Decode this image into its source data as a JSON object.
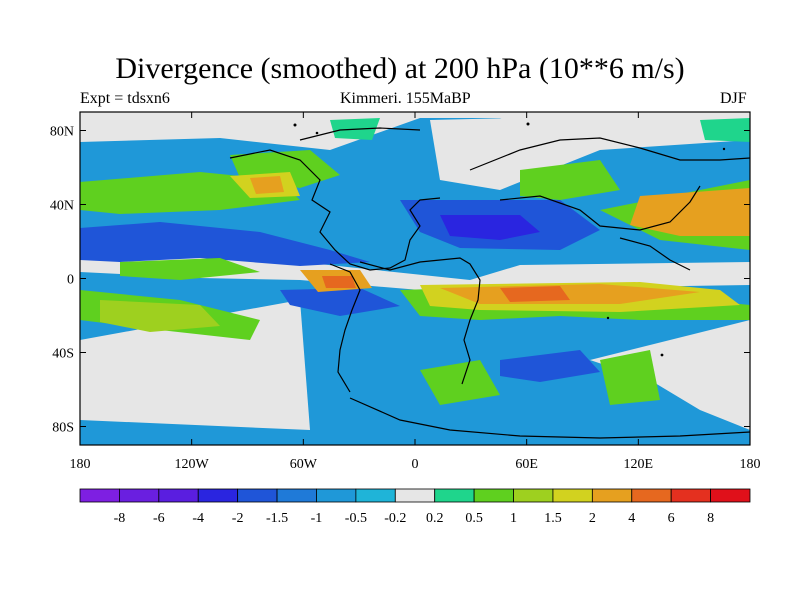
{
  "title": "Divergence (smoothed) at 200 hPa (10**6 m/s)",
  "experiment": "Expt = tdsxn6",
  "subtitle": "Kimmeri. 155MaBP",
  "season": "DJF",
  "lat_ticks": [
    {
      "value": 80,
      "label": "80N"
    },
    {
      "value": 40,
      "label": "40N"
    },
    {
      "value": 0,
      "label": "0"
    },
    {
      "value": -40,
      "label": "40S"
    },
    {
      "value": -80,
      "label": "80S"
    }
  ],
  "lon_ticks": [
    {
      "value": -180,
      "label": "180"
    },
    {
      "value": -120,
      "label": "120W"
    },
    {
      "value": -60,
      "label": "60W"
    },
    {
      "value": 0,
      "label": "0"
    },
    {
      "value": 60,
      "label": "60E"
    },
    {
      "value": 120,
      "label": "120E"
    },
    {
      "value": 180,
      "label": "180"
    }
  ],
  "colorbar": {
    "colors": [
      "#7e1fe2",
      "#6a1fe0",
      "#5a1ee0",
      "#2a25e0",
      "#1f55d8",
      "#1f7ad8",
      "#1f98d8",
      "#1fb4d8",
      "#e6e6e6",
      "#1fd58c",
      "#5fd01f",
      "#9ed01f",
      "#d2d21f",
      "#e6a01f",
      "#e6681f",
      "#e4301f",
      "#e0101a"
    ],
    "labels": [
      "-8",
      "-6",
      "-4",
      "-2",
      "-1.5",
      "-1",
      "-0.5",
      "-0.2",
      "0.2",
      "0.5",
      "1",
      "1.5",
      "2",
      "4",
      "6",
      "8"
    ]
  },
  "color_roles": {
    "neutral": "#e6e6e6",
    "coastline": "#000000"
  }
}
